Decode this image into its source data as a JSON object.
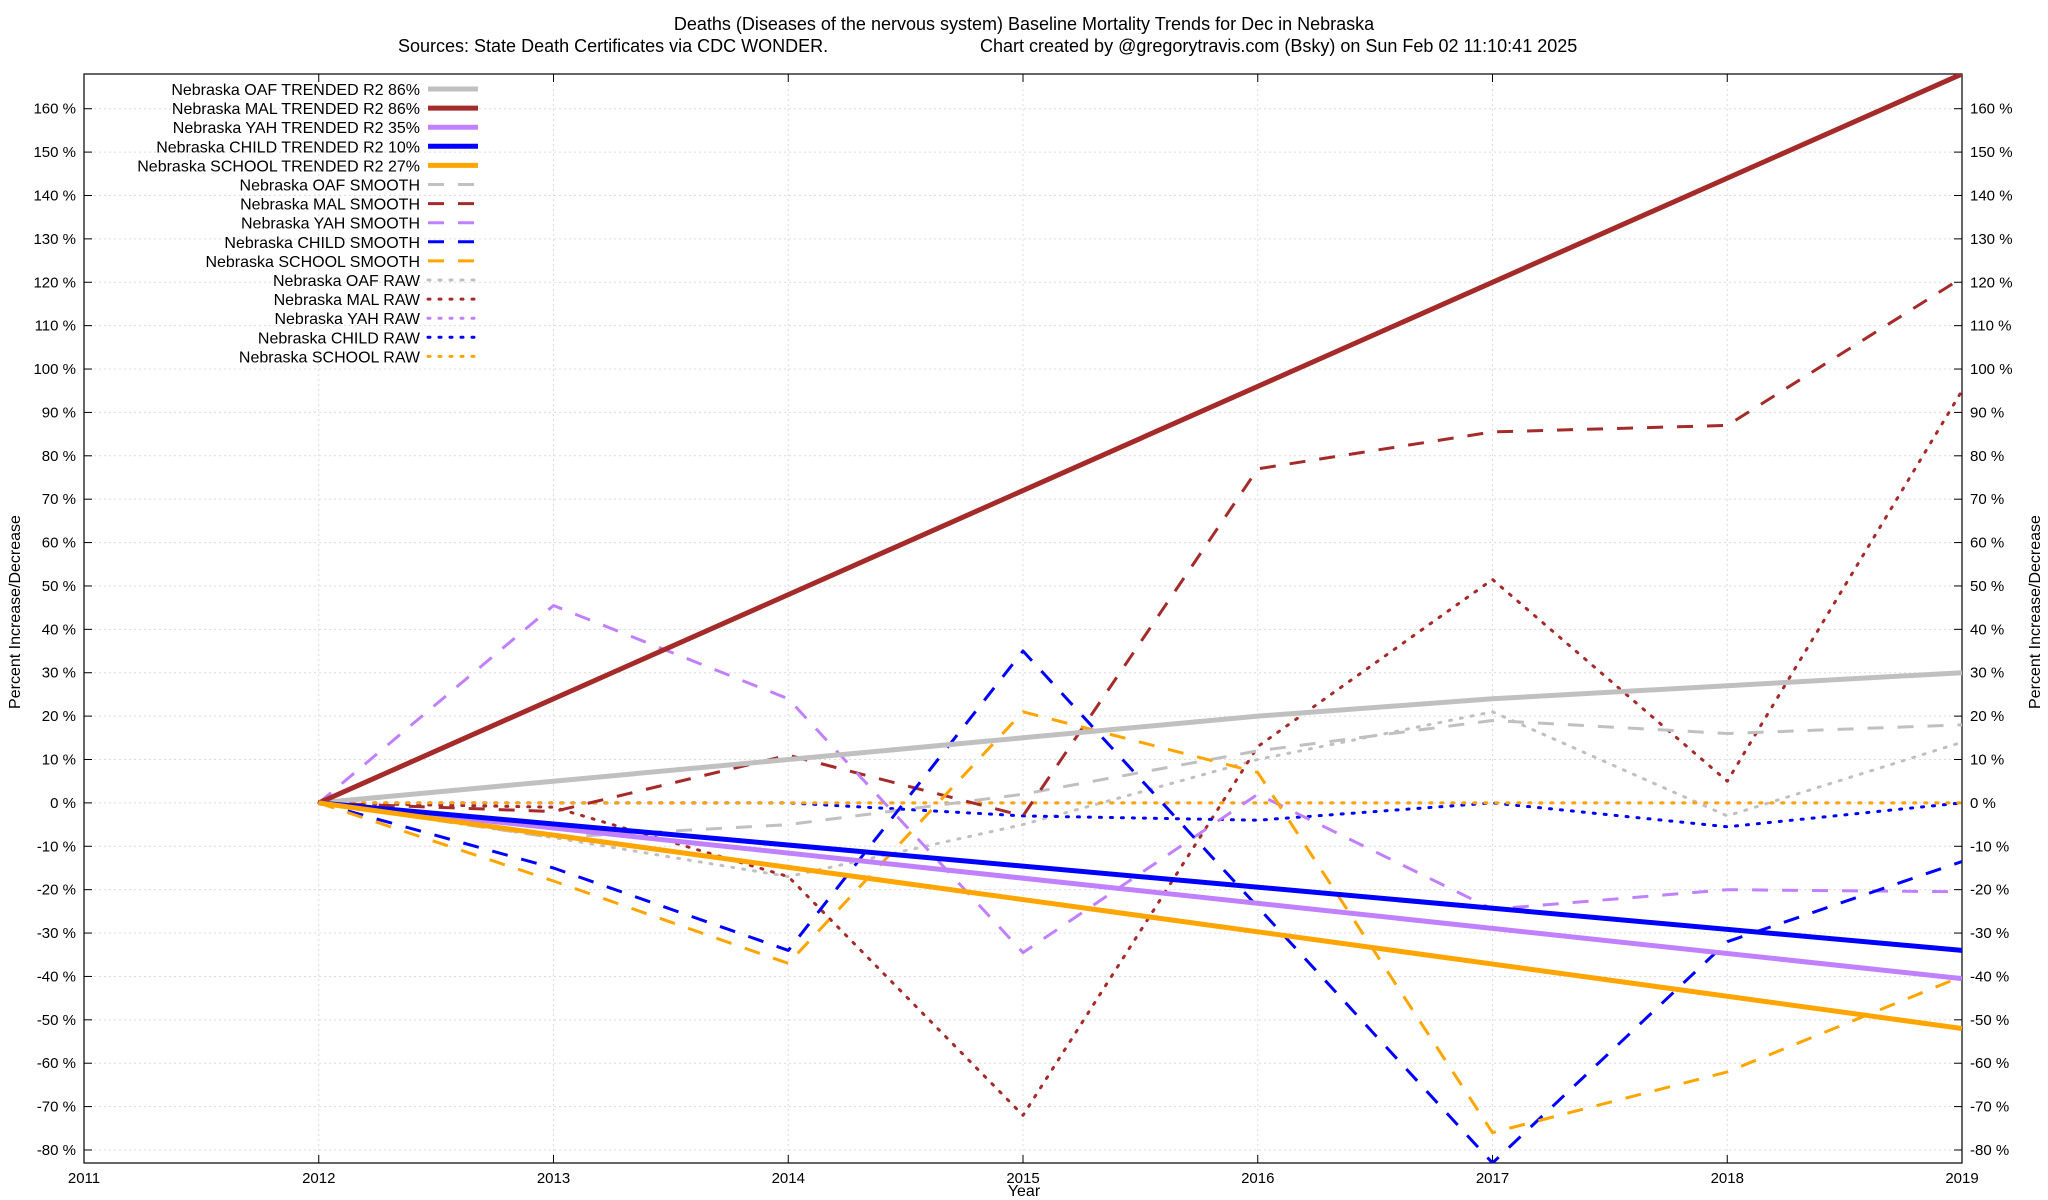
{
  "chart_data": {
    "type": "line",
    "title": "Deaths (Diseases of the nervous system)  Baseline Mortality Trends for Dec in Nebraska",
    "subtitle_left": "Sources: State Death Certificates via CDC WONDER.",
    "subtitle_right": "Chart created by @gregorytravis.com (Bsky) on Sun Feb 02 11:10:41 2025",
    "xlabel": "Year",
    "ylabel_left": "Percent Increase/Decrease",
    "ylabel_right": "Percent Increase/Decrease",
    "xlim": [
      2011,
      2019
    ],
    "ylim": [
      -83,
      168
    ],
    "x_ticks": [
      "2011",
      "2012",
      "2013",
      "2014",
      "2015",
      "2016",
      "2017",
      "2018",
      "2019"
    ],
    "y_ticks": [
      -80,
      -70,
      -60,
      -50,
      -40,
      -30,
      -20,
      -10,
      0,
      10,
      20,
      30,
      40,
      50,
      60,
      70,
      80,
      90,
      100,
      110,
      120,
      130,
      140,
      150,
      160
    ],
    "y_tick_suffix": " %",
    "grid": true,
    "legend_position": "top-left",
    "series": [
      {
        "name": "Nebraska OAF TRENDED R2  86%",
        "color": "#c0c0c0",
        "style": "solid",
        "width": 5,
        "x": [
          2012,
          2013,
          2014,
          2015,
          2016,
          2017,
          2018,
          2019
        ],
        "y": [
          0,
          5,
          10,
          15,
          20,
          24,
          27,
          30
        ]
      },
      {
        "name": "Nebraska MAL TRENDED R2  86%",
        "color": "#a52a2a",
        "style": "solid",
        "width": 5,
        "x": [
          2012,
          2019
        ],
        "y": [
          0,
          168
        ]
      },
      {
        "name": "Nebraska YAH TRENDED R2  35%",
        "color": "#c080ff",
        "style": "solid",
        "width": 5,
        "x": [
          2012,
          2019
        ],
        "y": [
          0,
          -40.5
        ]
      },
      {
        "name": "Nebraska CHILD TRENDED R2  10%",
        "color": "#0000ff",
        "style": "solid",
        "width": 5,
        "x": [
          2012,
          2019
        ],
        "y": [
          0,
          -34
        ]
      },
      {
        "name": "Nebraska SCHOOL TRENDED R2  27%",
        "color": "#ffa500",
        "style": "solid",
        "width": 5,
        "x": [
          2012,
          2019
        ],
        "y": [
          0,
          -52
        ]
      },
      {
        "name": "Nebraska OAF SMOOTH",
        "color": "#c0c0c0",
        "style": "dashed",
        "width": 3,
        "x": [
          2012,
          2013,
          2014,
          2015,
          2016,
          2017,
          2018,
          2019
        ],
        "y": [
          0,
          -8,
          -5,
          2,
          12,
          19,
          16,
          18
        ]
      },
      {
        "name": "Nebraska MAL SMOOTH",
        "color": "#a52a2a",
        "style": "dashed",
        "width": 3,
        "x": [
          2012,
          2013,
          2014,
          2015,
          2016,
          2017,
          2018,
          2019
        ],
        "y": [
          0,
          -2,
          11,
          -3,
          77,
          85.5,
          87,
          121
        ]
      },
      {
        "name": "Nebraska YAH SMOOTH",
        "color": "#c080ff",
        "style": "dashed",
        "width": 3,
        "x": [
          2012,
          2013,
          2014,
          2015,
          2016,
          2017,
          2018,
          2019
        ],
        "y": [
          0,
          45.5,
          24,
          -34.5,
          2,
          -24.5,
          -20,
          -20.5
        ]
      },
      {
        "name": "Nebraska CHILD SMOOTH",
        "color": "#0000ff",
        "style": "dashed",
        "width": 3,
        "x": [
          2012,
          2013,
          2014,
          2015,
          2016,
          2017,
          2018,
          2019
        ],
        "y": [
          0,
          -15,
          -34,
          35,
          -24,
          -83,
          -32,
          -13.5
        ]
      },
      {
        "name": "Nebraska SCHOOL SMOOTH",
        "color": "#ffa500",
        "style": "dashed",
        "width": 3,
        "x": [
          2012,
          2013,
          2014,
          2015,
          2016,
          2017,
          2018,
          2019
        ],
        "y": [
          0,
          -18,
          -37,
          21,
          7,
          -76,
          -62,
          -40
        ]
      },
      {
        "name": "Nebraska OAF RAW",
        "color": "#c0c0c0",
        "style": "dotted",
        "width": 3,
        "x": [
          2012,
          2013,
          2014,
          2015,
          2016,
          2017,
          2018,
          2019
        ],
        "y": [
          0,
          -8,
          -17,
          -5,
          10,
          21,
          -3,
          14
        ]
      },
      {
        "name": "Nebraska MAL RAW",
        "color": "#a52a2a",
        "style": "dotted",
        "width": 3,
        "x": [
          2012,
          2013,
          2014,
          2015,
          2016,
          2017,
          2018,
          2019
        ],
        "y": [
          0,
          -1,
          -17,
          -72,
          13,
          51.5,
          5,
          95
        ]
      },
      {
        "name": "Nebraska YAH RAW",
        "color": "#c080ff",
        "style": "dotted",
        "width": 3,
        "x": [
          2012,
          2013,
          2014,
          2015,
          2016,
          2017,
          2018,
          2019
        ],
        "y": [
          0,
          0,
          0,
          0,
          0,
          0,
          0,
          0
        ]
      },
      {
        "name": "Nebraska CHILD RAW",
        "color": "#0000ff",
        "style": "dotted",
        "width": 3,
        "x": [
          2012,
          2013,
          2014,
          2015,
          2016,
          2017,
          2018,
          2019
        ],
        "y": [
          0,
          0,
          0,
          -3,
          -4,
          0,
          -5.5,
          0
        ]
      },
      {
        "name": "Nebraska SCHOOL RAW",
        "color": "#ffa500",
        "style": "dotted",
        "width": 3,
        "x": [
          2012,
          2013,
          2014,
          2015,
          2016,
          2017,
          2018,
          2019
        ],
        "y": [
          0,
          0,
          0,
          0,
          0,
          0,
          0,
          0
        ]
      }
    ]
  }
}
